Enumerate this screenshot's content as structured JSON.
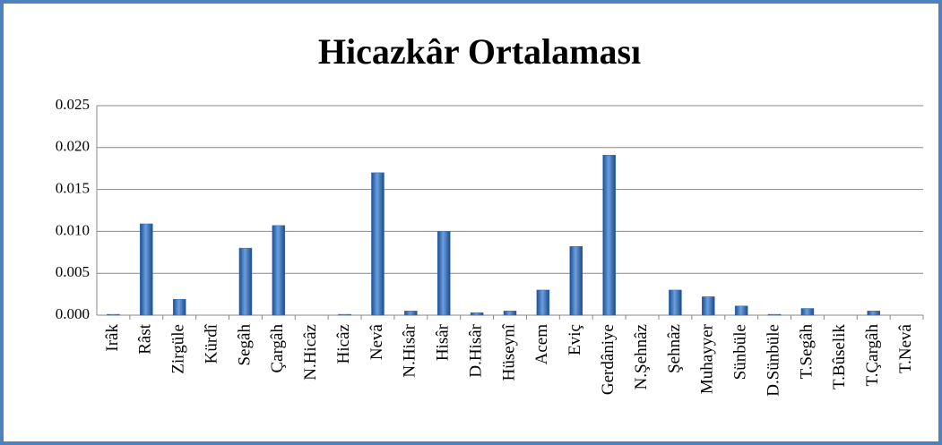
{
  "chart_data": {
    "type": "bar",
    "title": "Hicazkâr Ortalaması",
    "categories": [
      "Irâk",
      "Râst",
      "Zirgüle",
      "Kürdî",
      "Segâh",
      "Çargâh",
      "N.Hicâz",
      "Hicâz",
      "Nevâ",
      "N.Hisâr",
      "Hisâr",
      "D.Hisâr",
      "Hüseynî",
      "Acem",
      "Eviç",
      "Gerdâniye",
      "N.Şehnâz",
      "Şehnâz",
      "Muhayyer",
      "Sünbüle",
      "D.Sünbüle",
      "T.Segâh",
      "T.Bûselik",
      "T.Çargâh",
      "T.Nevâ"
    ],
    "values": [
      0.0001,
      0.0109,
      0.0019,
      0,
      0.008,
      0.0107,
      0,
      0.0001,
      0.017,
      0.0005,
      0.01,
      0.0003,
      0.0005,
      0.003,
      0.0082,
      0.0191,
      0,
      0.003,
      0.0022,
      0.0011,
      0.0001,
      0.0008,
      0,
      0.0005,
      0
    ],
    "color": "#2f6bb5",
    "ylim": [
      0,
      0.025
    ],
    "yticks": [
      {
        "value": 0,
        "label": "0.000"
      },
      0.005,
      {
        "value": 0.01,
        "label": "0.010"
      },
      0.015,
      {
        "value": 0.02,
        "label": "0.020"
      },
      0.025
    ],
    "grid": true
  }
}
